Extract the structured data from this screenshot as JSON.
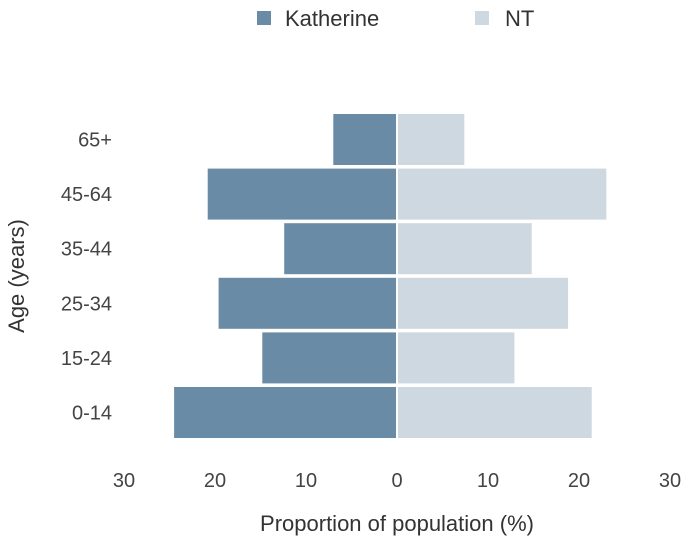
{
  "chart_data": {
    "type": "bar",
    "orientation": "horizontal",
    "layout": "population-pyramid",
    "categories": [
      "65+",
      "45-64",
      "35-44",
      "25-34",
      "15-24",
      "0-14"
    ],
    "series": [
      {
        "name": "Katherine",
        "side": "left",
        "color": "#6a8ba5",
        "values": [
          7.0,
          20.8,
          12.4,
          19.6,
          14.8,
          24.5
        ]
      },
      {
        "name": "NT",
        "side": "right",
        "color": "#cdd8e1",
        "values": [
          7.4,
          23.0,
          14.8,
          18.8,
          12.9,
          21.4
        ]
      }
    ],
    "xlabel": "Proportion of population (%)",
    "ylabel": "Age (years)",
    "xlim": [
      -30,
      30
    ],
    "x_ticks": [
      -30,
      -20,
      -10,
      0,
      10,
      20,
      30
    ],
    "x_tick_labels": [
      "30",
      "20",
      "10",
      "0",
      "10",
      "20",
      "30"
    ],
    "legend_position": "top-center",
    "grid": false
  }
}
